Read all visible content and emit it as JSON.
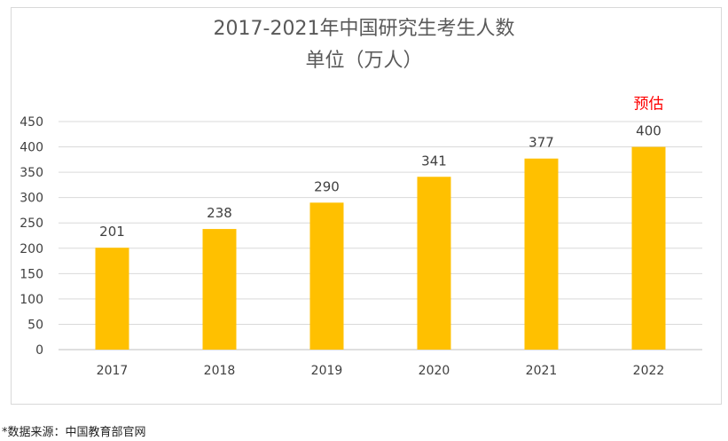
{
  "chart_data": {
    "type": "bar",
    "title": "2017-2021年中国研究生考生人数",
    "subtitle": "单位（万人）",
    "categories": [
      "2017",
      "2018",
      "2019",
      "2020",
      "2021",
      "2022"
    ],
    "values": [
      201,
      238,
      290,
      341,
      377,
      400
    ],
    "data_labels": [
      "201",
      "238",
      "290",
      "341",
      "377",
      "400"
    ],
    "annotation": "预估",
    "y_ticks": [
      "0",
      "50",
      "100",
      "150",
      "200",
      "250",
      "300",
      "350",
      "400",
      "450"
    ],
    "ylim": [
      0,
      450
    ],
    "grid": true,
    "bar_color": "#ffc000",
    "annotation_color": "#ff0000"
  },
  "footnote": "*数据来源：中国教育部官网"
}
